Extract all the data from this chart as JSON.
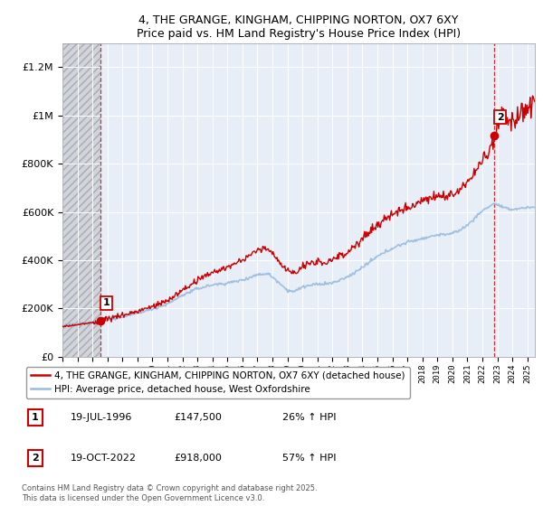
{
  "title": "4, THE GRANGE, KINGHAM, CHIPPING NORTON, OX7 6XY",
  "subtitle": "Price paid vs. HM Land Registry's House Price Index (HPI)",
  "ylim": [
    0,
    1300000
  ],
  "yticks": [
    0,
    200000,
    400000,
    600000,
    800000,
    1000000,
    1200000
  ],
  "ytick_labels": [
    "£0",
    "£200K",
    "£400K",
    "£600K",
    "£800K",
    "£1M",
    "£1.2M"
  ],
  "sale1_date": 1996.54,
  "sale1_price": 147500,
  "sale2_date": 2022.79,
  "sale2_price": 918000,
  "red_line_color": "#cc0000",
  "blue_line_color": "#99bbdd",
  "background_color": "#ffffff",
  "plot_bg_color": "#e8eef8",
  "grid_color": "#ffffff",
  "vline_color": "#cc0000",
  "legend1_text": "4, THE GRANGE, KINGHAM, CHIPPING NORTON, OX7 6XY (detached house)",
  "legend2_text": "HPI: Average price, detached house, West Oxfordshire",
  "annotation1_date": "19-JUL-1996",
  "annotation1_price": "£147,500",
  "annotation1_hpi": "26% ↑ HPI",
  "annotation2_date": "19-OCT-2022",
  "annotation2_price": "£918,000",
  "annotation2_hpi": "57% ↑ HPI",
  "footer_text": "Contains HM Land Registry data © Crown copyright and database right 2025.\nThis data is licensed under the Open Government Licence v3.0.",
  "xmin": 1994,
  "xmax": 2025.5
}
